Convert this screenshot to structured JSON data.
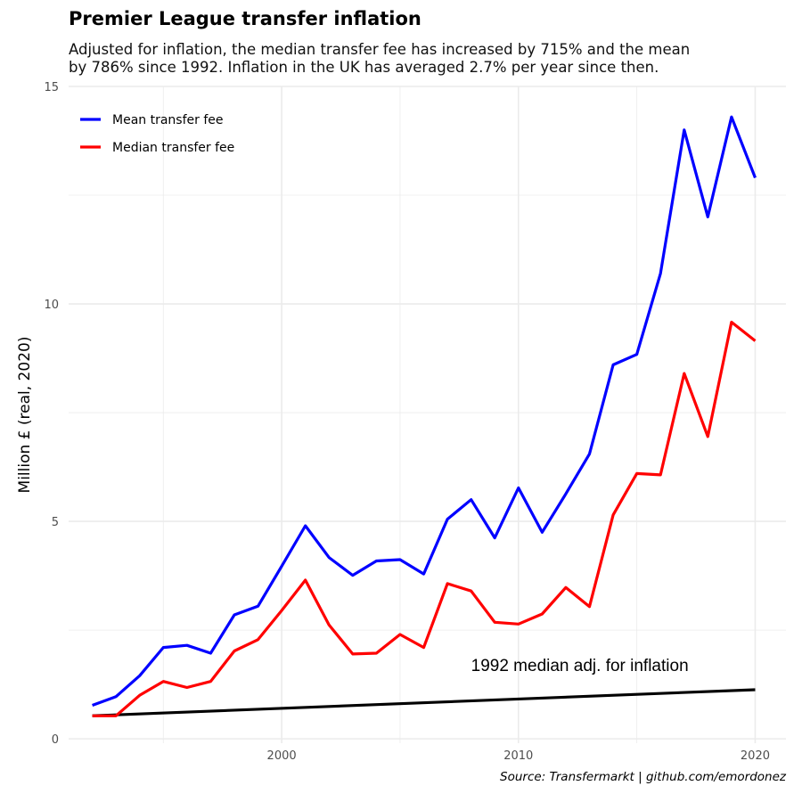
{
  "header": {
    "title": "Premier League transfer inflation",
    "subtitle_line1": "Adjusted for inflation, the median transfer fee has increased by 715% and the mean",
    "subtitle_line2": "by 786% since 1992. Inflation in the UK has averaged 2.7% per year since then."
  },
  "caption": "Source: Transfermarkt | github.com/emordonez",
  "colors": {
    "mean": "#0000ff",
    "median": "#ff0000",
    "reference": "#000000",
    "grid": "#ebebeb"
  },
  "chart_data": {
    "type": "line",
    "title": "Premier League transfer inflation",
    "xlabel": "",
    "ylabel": "Million £ (real, 2020)",
    "xlim": [
      1991,
      2021.3
    ],
    "ylim": [
      -0.1,
      15
    ],
    "x_ticks": [
      2000,
      2010,
      2020
    ],
    "y_ticks": [
      0,
      5,
      10,
      15
    ],
    "grid": true,
    "legend_position": "top-left",
    "x": [
      1992,
      1993,
      1994,
      1995,
      1996,
      1997,
      1998,
      1999,
      2000,
      2001,
      2002,
      2003,
      2004,
      2005,
      2006,
      2007,
      2008,
      2009,
      2010,
      2011,
      2012,
      2013,
      2014,
      2015,
      2016,
      2017,
      2018,
      2019,
      2020
    ],
    "series": [
      {
        "name": "Mean transfer fee",
        "color": "#0000ff",
        "values": [
          0.77,
          0.97,
          1.45,
          2.1,
          2.15,
          1.97,
          2.85,
          3.05,
          3.97,
          4.9,
          4.17,
          3.76,
          4.09,
          4.12,
          3.79,
          5.05,
          5.5,
          4.62,
          5.77,
          4.75,
          5.63,
          6.55,
          8.6,
          8.84,
          10.7,
          14.0,
          12.0,
          14.3,
          12.9
        ]
      },
      {
        "name": "Median transfer fee",
        "color": "#ff0000",
        "values": [
          0.53,
          0.53,
          1.0,
          1.32,
          1.18,
          1.32,
          2.02,
          2.28,
          2.95,
          3.65,
          2.62,
          1.95,
          1.97,
          2.4,
          2.1,
          3.57,
          3.4,
          2.68,
          2.64,
          2.87,
          3.48,
          3.04,
          5.15,
          6.1,
          6.07,
          8.4,
          6.95,
          9.58,
          9.15
        ]
      }
    ],
    "reference_line": {
      "x": [
        1992,
        2020
      ],
      "values": [
        0.53,
        1.13
      ]
    },
    "annotations": [
      {
        "text": "1992 median adj. for inflation",
        "x": 2008,
        "y": 1.7
      }
    ]
  }
}
